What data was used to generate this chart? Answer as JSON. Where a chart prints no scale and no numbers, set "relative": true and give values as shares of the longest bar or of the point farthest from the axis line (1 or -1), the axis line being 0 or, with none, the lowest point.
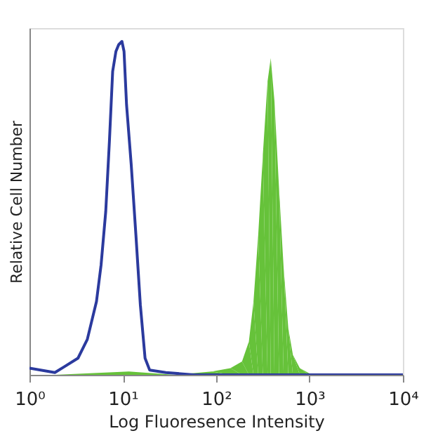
{
  "chart_data": {
    "type": "line",
    "relative": true,
    "xlabel": "Log Fluoresence Intensity",
    "ylabel": "Relative Cell Number",
    "log": "x",
    "grid": false,
    "line_style": "solid",
    "marker": "none",
    "xlim": [
      1,
      10000
    ],
    "xticks": [
      {
        "value": 1,
        "label": "10⁰"
      },
      {
        "value": 10,
        "label": "10¹"
      },
      {
        "value": 100,
        "label": "10²"
      },
      {
        "value": 1000,
        "label": "10³"
      },
      {
        "value": 10000,
        "label": "10⁴"
      }
    ],
    "series": [
      {
        "type": "area",
        "color": "#66c23a",
        "x": [
          1.87,
          11.6,
          36.3,
          90,
          142,
          189,
          224,
          251,
          282,
          316,
          355,
          384,
          421,
          471,
          528,
          592,
          663,
          787,
          989,
          1100
        ],
        "values": [
          0,
          0.01,
          0,
          0.01,
          0.02,
          0.04,
          0.1,
          0.22,
          0.42,
          0.66,
          0.88,
          0.95,
          0.82,
          0.56,
          0.32,
          0.14,
          0.06,
          0.02,
          0.005,
          0
        ]
      },
      {
        "type": "line",
        "color": "#2b3a9e",
        "x": [
          1,
          1.87,
          2.35,
          3.31,
          4.16,
          5.22,
          5.85,
          6.56,
          7.18,
          7.78,
          8.43,
          9.02,
          9.78,
          10.3,
          10.96,
          12.3,
          13.8,
          15.4,
          17.3,
          19.4,
          28.9,
          57.2,
          10000
        ],
        "values": [
          0.02,
          0.007,
          0.024,
          0.05,
          0.106,
          0.22,
          0.33,
          0.49,
          0.7,
          0.91,
          0.97,
          0.99,
          1,
          0.97,
          0.81,
          0.63,
          0.42,
          0.21,
          0.05,
          0.014,
          0.007,
          0,
          0
        ]
      }
    ]
  }
}
